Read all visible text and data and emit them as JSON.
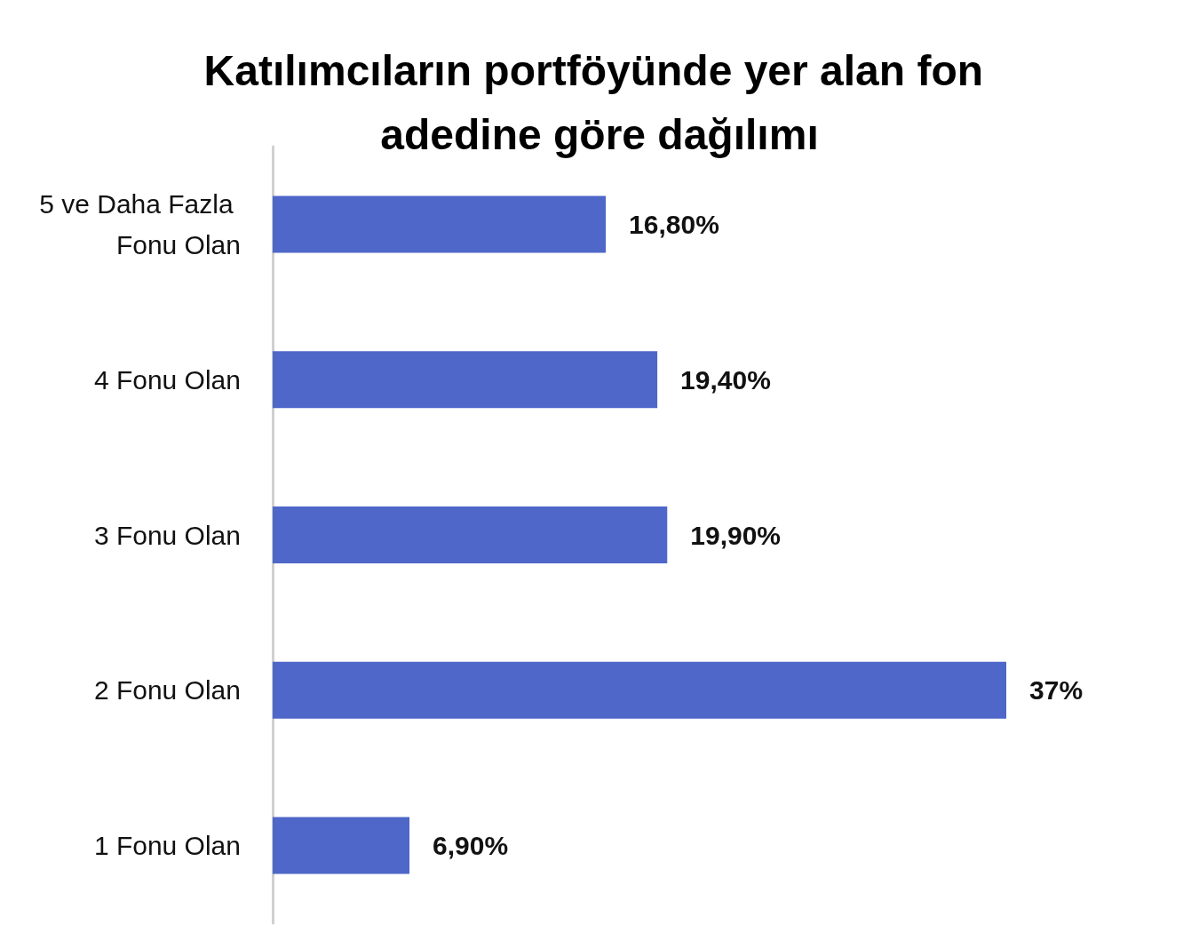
{
  "chart_data": {
    "type": "bar",
    "orientation": "horizontal",
    "title": "Katılımcıların portföyünde yer alan fon adedine göre dağılımı",
    "categories": [
      "5 ve Daha Fazla Fonu Olan",
      "4 Fonu Olan",
      "3 Fonu Olan",
      "2 Fonu Olan",
      "1 Fonu Olan"
    ],
    "values": [
      16.8,
      19.4,
      19.9,
      37,
      6.9
    ],
    "value_labels": [
      "16,80%",
      "19,40%",
      "19,90%",
      "37%",
      "6,90%"
    ],
    "color": "#4e67c8"
  }
}
